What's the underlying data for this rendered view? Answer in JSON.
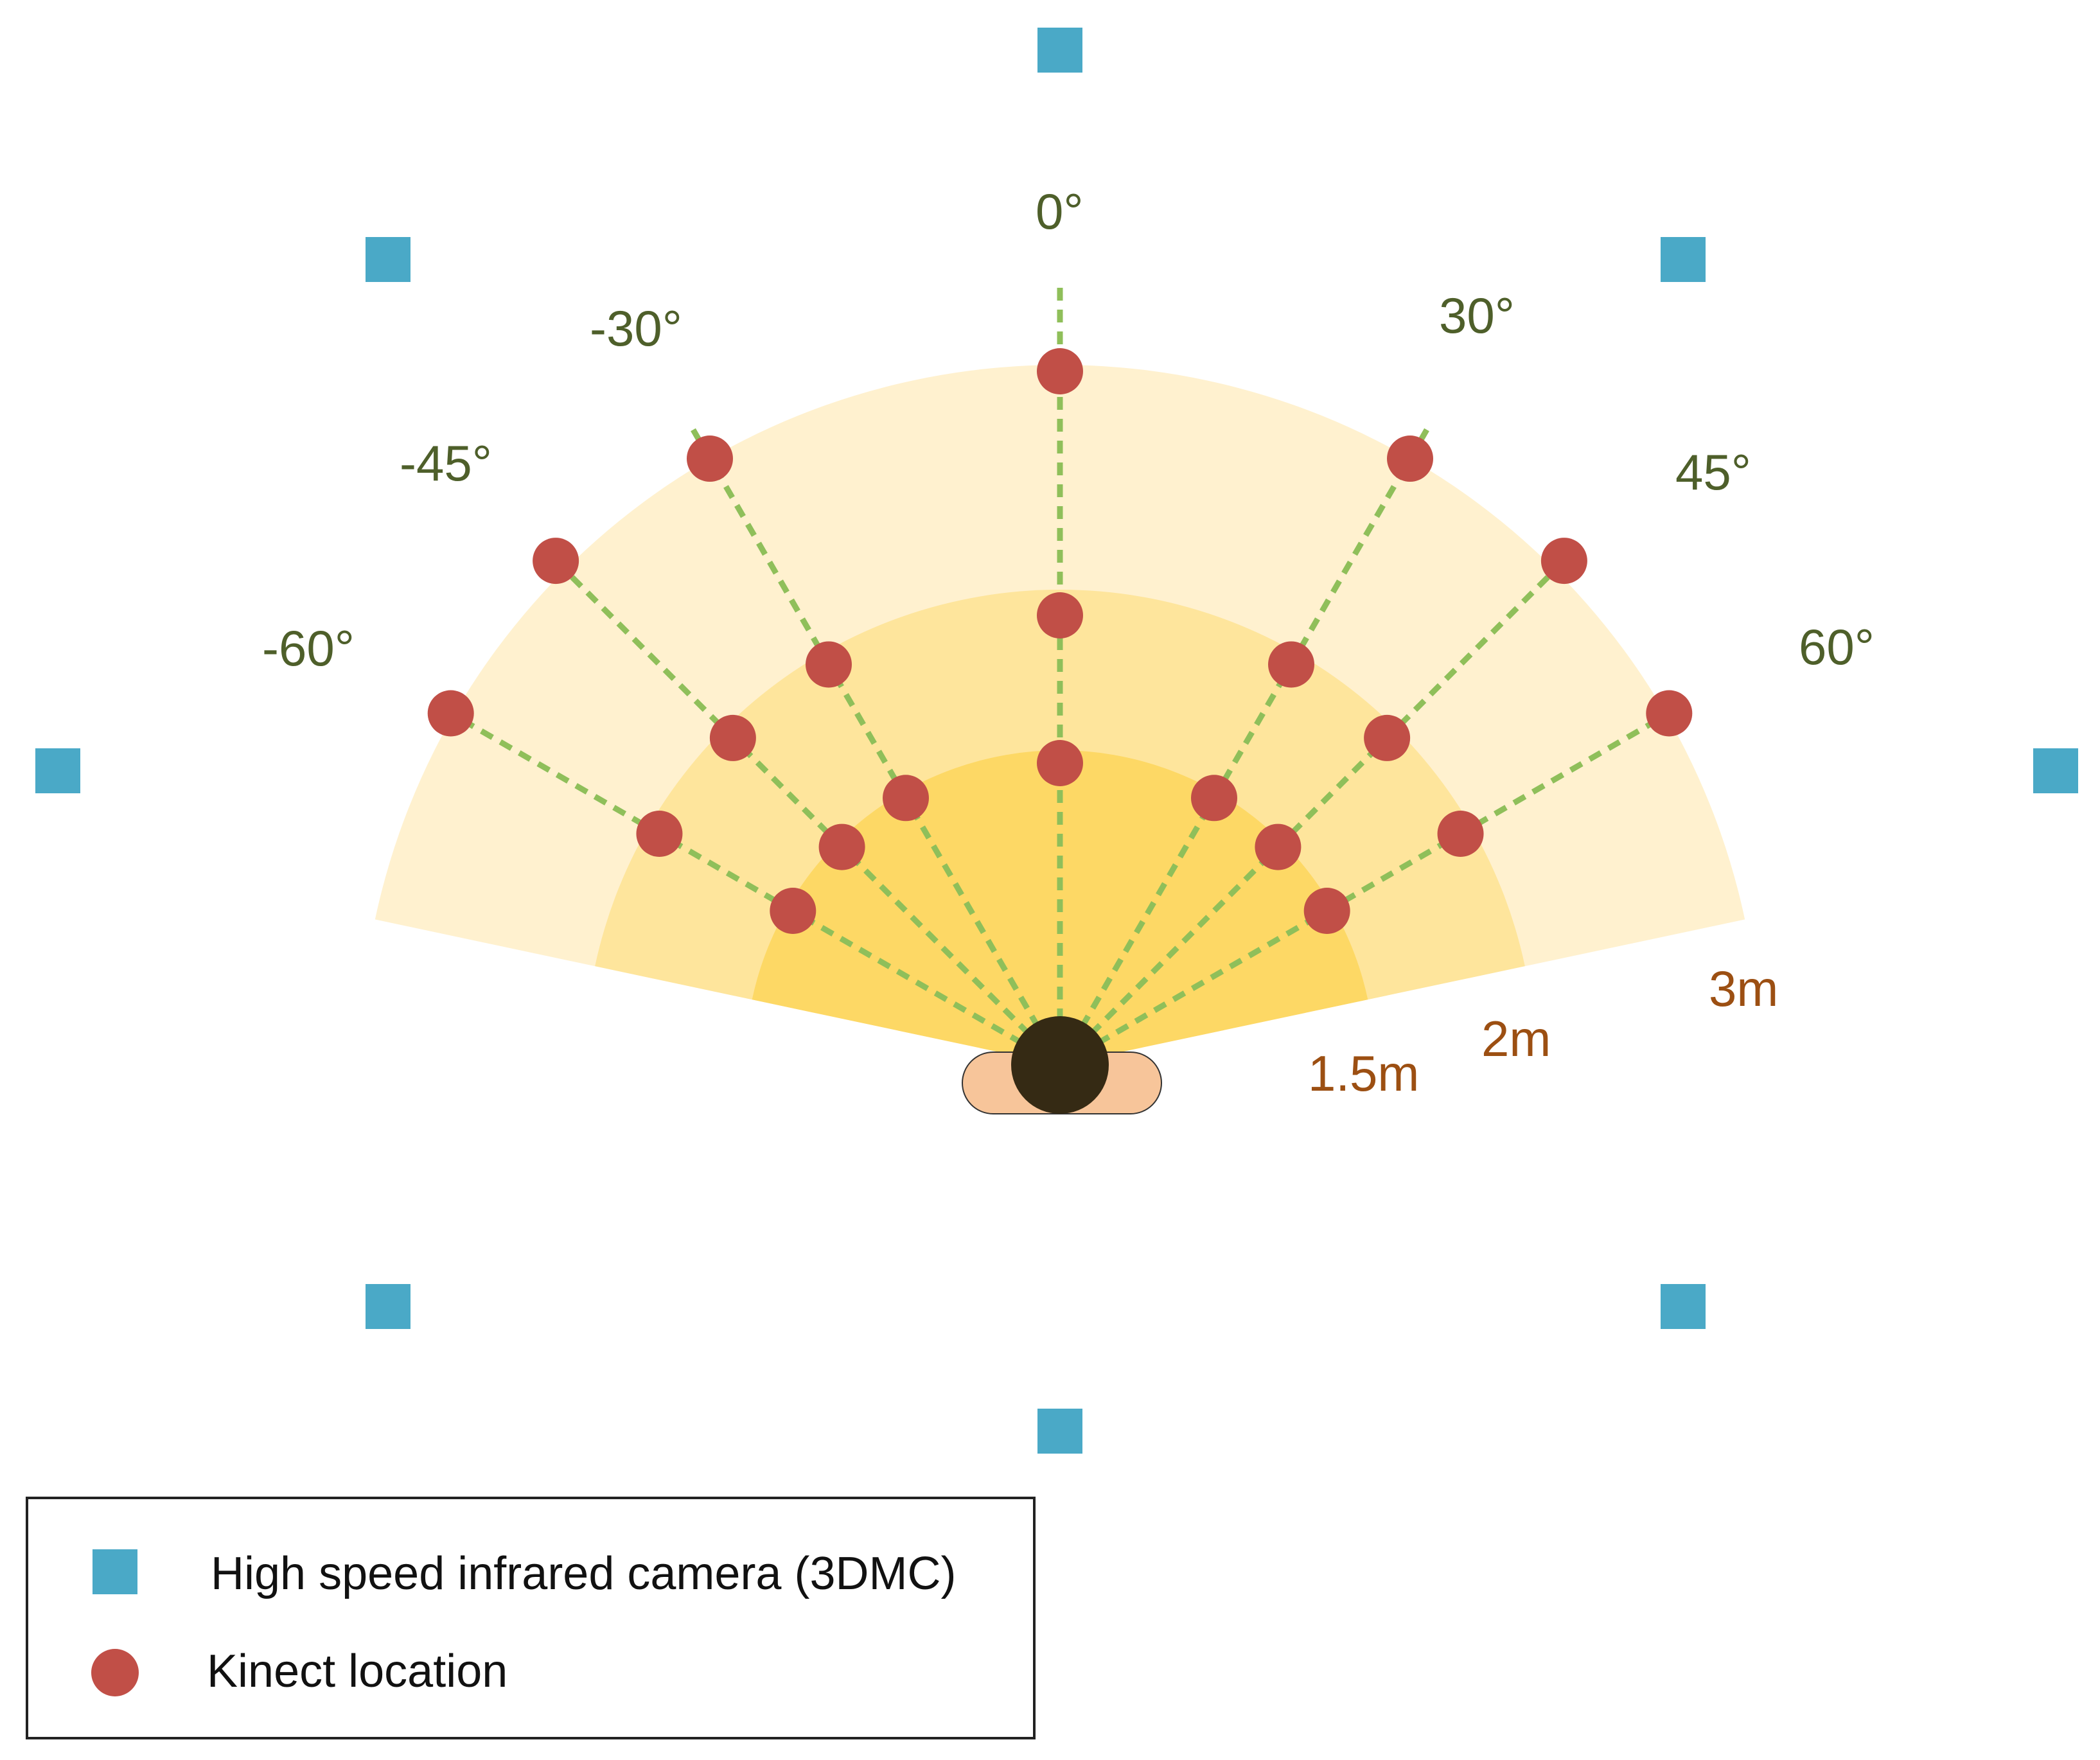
{
  "colors": {
    "camera": "#4aa9c7",
    "kinect": "#c14f47",
    "ray": "#8fbf5a",
    "zone_3m": "#fff1cf",
    "zone_2m": "#fee59c",
    "zone_1_5m": "#fdd865",
    "subject_head": "#352a14",
    "subject_shoulders": "#f7c59a",
    "angle_text": "#4e5f2a",
    "distance_text": "#9c4f12"
  },
  "angles": [
    {
      "label": "-60°",
      "degrees": -60
    },
    {
      "label": "-45°",
      "degrees": -45
    },
    {
      "label": "-30°",
      "degrees": -30
    },
    {
      "label": "0°",
      "degrees": 0
    },
    {
      "label": "30°",
      "degrees": 30
    },
    {
      "label": "45°",
      "degrees": 45
    },
    {
      "label": "60°",
      "degrees": 60
    }
  ],
  "distances": [
    {
      "label": "1.5m",
      "meters": 1.5
    },
    {
      "label": "2m",
      "meters": 2
    },
    {
      "label": "3m",
      "meters": 3
    }
  ],
  "cameras": {
    "icon": "square-icon",
    "count": 8
  },
  "legend": {
    "camera_label": "High speed infrared camera (3DMC)",
    "kinect_label": "Kinect location"
  }
}
